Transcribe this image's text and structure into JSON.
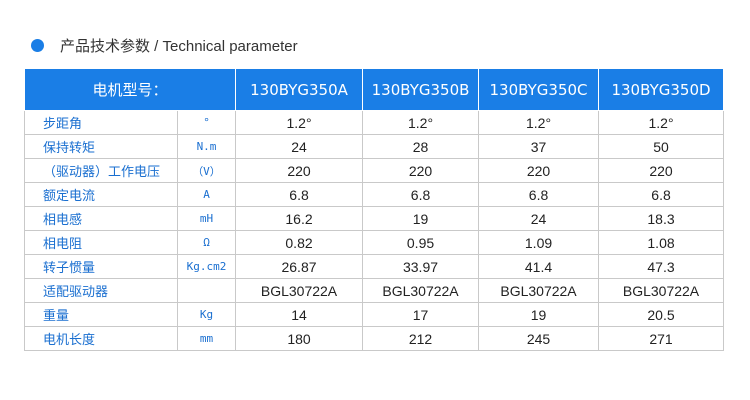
{
  "heading": {
    "text": "产品技术参数 / Technical parameter"
  },
  "table": {
    "header_label": "电机型号：",
    "models": [
      "130BYG350A",
      "130BYG350B",
      "130BYG350C",
      "130BYG350D"
    ],
    "rows": [
      {
        "name": "步距角",
        "unit": "°",
        "values": [
          "1.2°",
          "1.2°",
          "1.2°",
          "1.2°"
        ]
      },
      {
        "name": "保持转矩",
        "unit": "N.m",
        "values": [
          "24",
          "28",
          "37",
          "50"
        ]
      },
      {
        "name": "（驱动器）工作电压",
        "unit": "（V）",
        "values": [
          "220",
          "220",
          "220",
          "220"
        ]
      },
      {
        "name": "额定电流",
        "unit": "A",
        "values": [
          "6.8",
          "6.8",
          "6.8",
          "6.8"
        ]
      },
      {
        "name": "相电感",
        "unit": "mH",
        "values": [
          "16.2",
          "19",
          "24",
          "18.3"
        ]
      },
      {
        "name": "相电阻",
        "unit": "Ω",
        "values": [
          "0.82",
          "0.95",
          "1.09",
          "1.08"
        ]
      },
      {
        "name": "转子惯量",
        "unit": "Kg.cm2",
        "values": [
          "26.87",
          "33.97",
          "41.4",
          "47.3"
        ]
      },
      {
        "name": "适配驱动器",
        "unit": "",
        "values": [
          "BGL30722A",
          "BGL30722A",
          "BGL30722A",
          "BGL30722A"
        ]
      },
      {
        "name": "重量",
        "unit": "Kg",
        "values": [
          "14",
          "17",
          "19",
          "20.5"
        ]
      },
      {
        "name": "电机长度",
        "unit": "mm",
        "values": [
          "180",
          "212",
          "245",
          "271"
        ]
      }
    ]
  },
  "colors": {
    "accent": "#1a7ee6",
    "label": "#1a6fd0",
    "border": "#c9c9c9"
  }
}
